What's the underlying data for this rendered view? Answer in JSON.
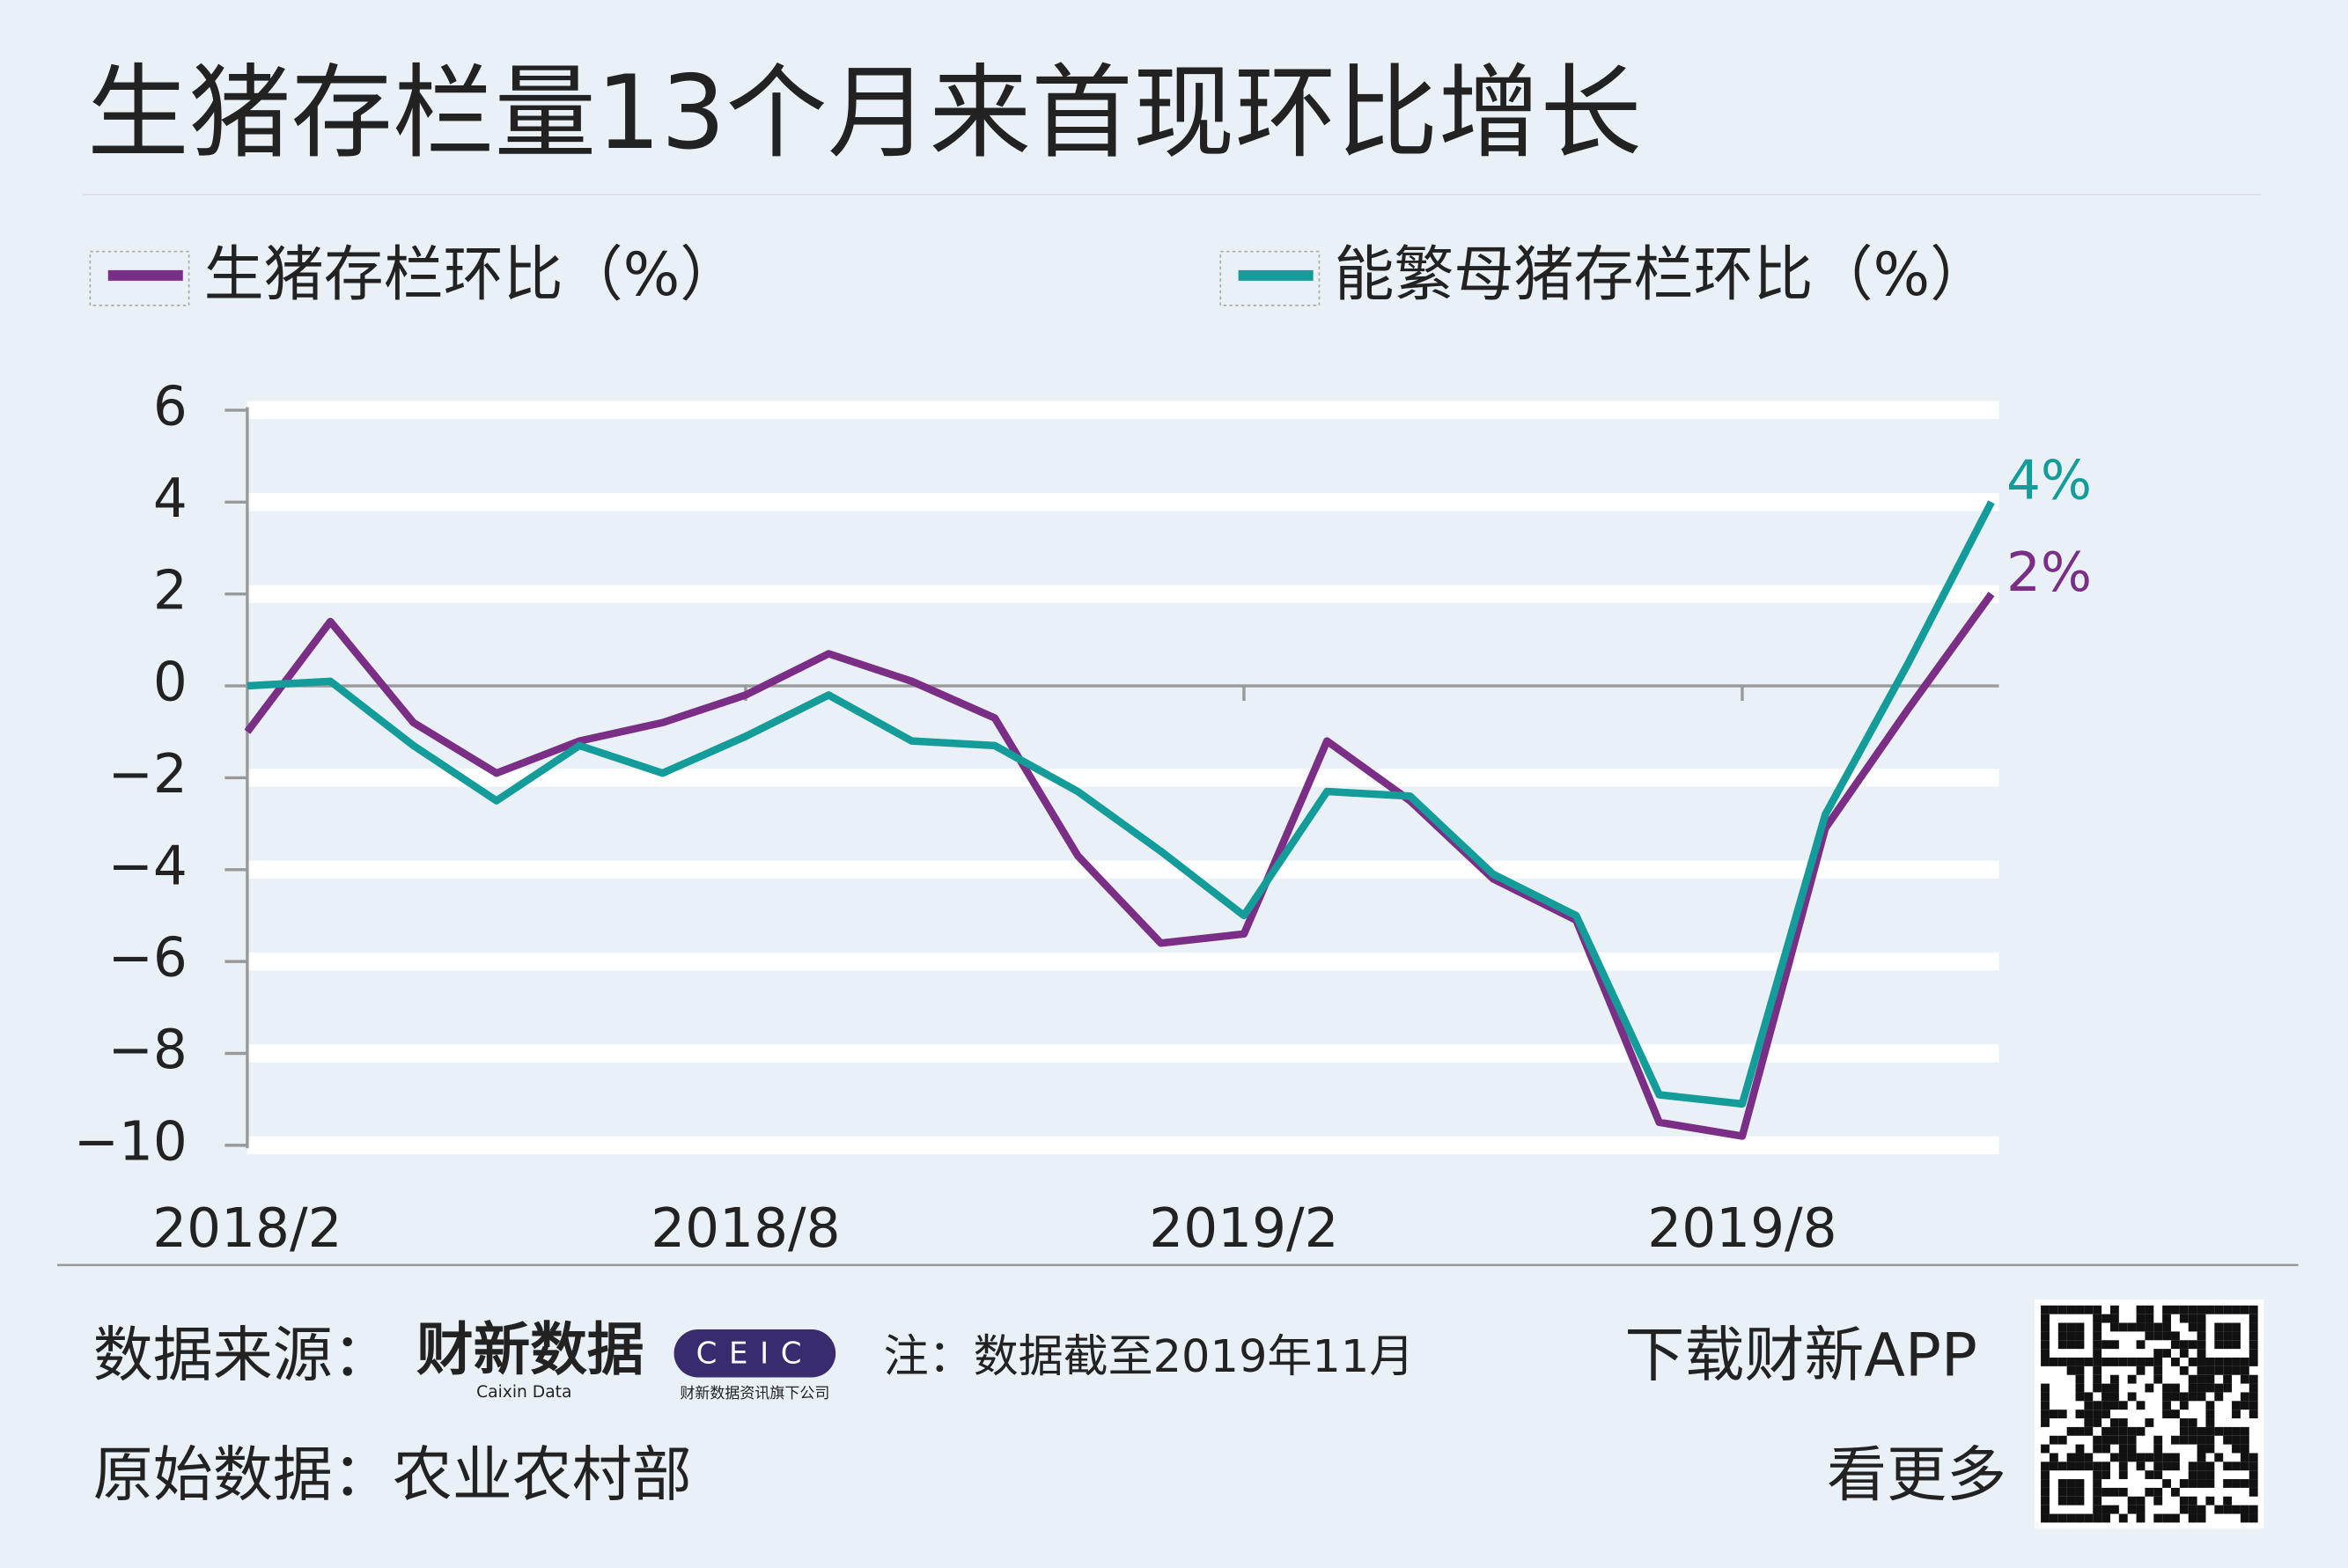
{
  "chart_data": {
    "type": "line",
    "title": "生猪存栏量13个月来首现环比增长",
    "categories": [
      "2018/2",
      null,
      null,
      null,
      null,
      null,
      "2018/8",
      null,
      null,
      null,
      null,
      null,
      "2019/2",
      null,
      null,
      null,
      null,
      null,
      "2019/8",
      null,
      null,
      null
    ],
    "series": [
      {
        "name": "生猪存栏环比（%）",
        "color": "#7a2e85",
        "values": [
          -1,
          1.4,
          -0.8,
          -1.9,
          -1.2,
          -0.8,
          -0.2,
          0.7,
          0.1,
          -0.7,
          -3.7,
          -5.6,
          -5.4,
          -1.2,
          -2.5,
          -4.2,
          -5.1,
          -9.5,
          -9.8,
          -3.1,
          -0.5,
          2
        ],
        "value_labels": [
          null,
          null,
          null,
          null,
          null,
          null,
          null,
          null,
          null,
          null,
          null,
          null,
          null,
          null,
          null,
          null,
          null,
          null,
          null,
          null,
          null,
          "2%"
        ]
      },
      {
        "name": "能繁母猪存栏环比（%）",
        "color": "#139c9a",
        "values": [
          0,
          0.1,
          -1.3,
          -2.5,
          -1.3,
          -1.9,
          -1.1,
          -0.2,
          -1.2,
          -1.3,
          -2.3,
          -3.6,
          -5.0,
          -2.3,
          -2.4,
          -4.1,
          -5.0,
          -8.9,
          -9.1,
          -2.8,
          0.5,
          4
        ],
        "value_labels": [
          null,
          null,
          null,
          null,
          null,
          null,
          null,
          null,
          null,
          null,
          null,
          null,
          null,
          null,
          null,
          null,
          null,
          null,
          null,
          null,
          null,
          "4%"
        ]
      }
    ],
    "ylim": [
      -10,
      6
    ],
    "yticks": [
      6,
      4,
      2,
      0,
      {
        "value": -2,
        "label": "−2"
      },
      {
        "value": -4,
        "label": "−4"
      },
      {
        "value": -6,
        "label": "−6"
      },
      {
        "value": -8,
        "label": "−8"
      },
      {
        "value": -10,
        "label": "−10"
      }
    ],
    "grid": true
  },
  "footer": {
    "source_label": "数据来源：",
    "logo": "财新数据",
    "logo_sub": "Caixin Data",
    "ceic": "CEIC",
    "ceic_sub": "财新数据资讯旗下公司",
    "note": "注：数据截至2019年11月",
    "app": "下载财新APP",
    "raw": "原始数据：农业农村部",
    "more": "看更多"
  }
}
